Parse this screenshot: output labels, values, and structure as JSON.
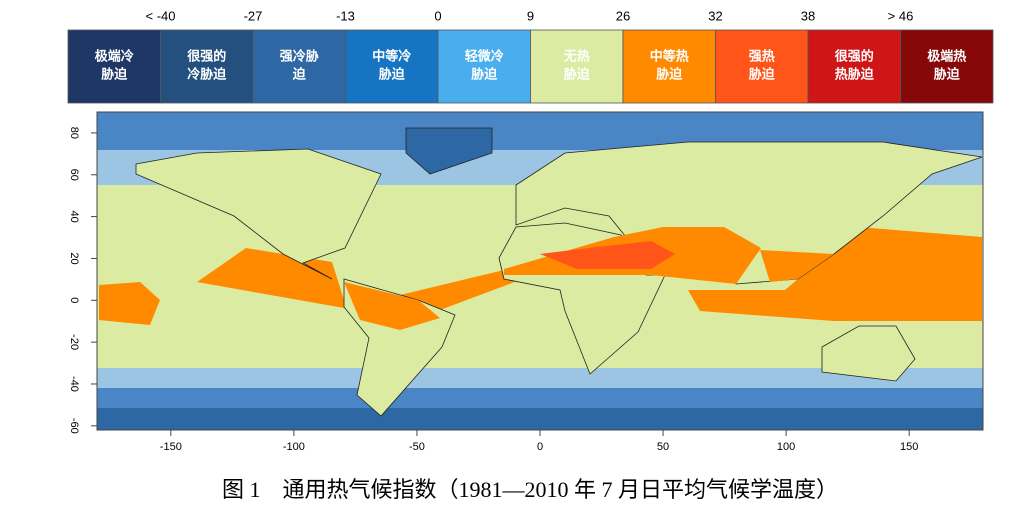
{
  "legend": {
    "thresholds": [
      "< -40",
      -27,
      -13,
      0,
      9,
      26,
      32,
      38,
      "> 46"
    ],
    "categories": [
      {
        "lines": [
          "极端冷",
          "胁迫"
        ],
        "color": "#1e3766"
      },
      {
        "lines": [
          "很强的",
          "冷胁迫"
        ],
        "color": "#23507f"
      },
      {
        "lines": [
          "强冷胁",
          "迫"
        ],
        "color": "#2d68a4"
      },
      {
        "lines": [
          "中等冷",
          "胁迫"
        ],
        "color": "#1674c2"
      },
      {
        "lines": [
          "轻微冷",
          "胁迫"
        ],
        "color": "#4aaeee"
      },
      {
        "lines": [
          "无热",
          "胁迫"
        ],
        "color": "#dbeba2"
      },
      {
        "lines": [
          "中等热",
          "胁迫"
        ],
        "color": "#ff8a00"
      },
      {
        "lines": [
          "强热",
          "胁迫"
        ],
        "color": "#ff5518"
      },
      {
        "lines": [
          "很强的",
          "热胁迫"
        ],
        "color": "#cf1616"
      },
      {
        "lines": [
          "极端热",
          "胁迫"
        ],
        "color": "#870808"
      }
    ]
  },
  "map": {
    "xlim": [
      -180,
      180
    ],
    "ylim": [
      -62,
      90
    ],
    "xticks": [
      -150,
      -100,
      -50,
      0,
      50,
      100,
      150
    ],
    "yticks": [
      -60,
      -40,
      -20,
      0,
      20,
      40,
      60,
      80
    ]
  },
  "caption": "图 1　通用热气候指数（1981—2010 年 7 月日平均气候学温度）"
}
